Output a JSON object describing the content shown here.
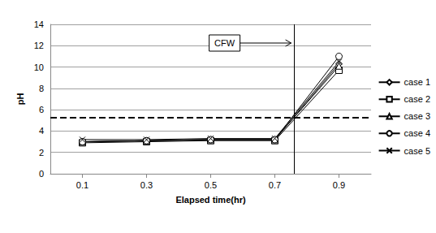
{
  "chart_data": {
    "type": "line",
    "x_label": "Elapsed time(hr)",
    "y_label": "pH",
    "x": [
      0.1,
      0.3,
      0.5,
      0.7,
      0.9
    ],
    "xlim": [
      0,
      1
    ],
    "xticks": [
      0.1,
      0.3,
      0.5,
      0.7,
      0.9
    ],
    "ylim": [
      0,
      14
    ],
    "yticks": [
      0,
      2,
      4,
      6,
      8,
      10,
      12,
      14
    ],
    "grid": true,
    "legend": "right",
    "threshold": 5.3,
    "event_x": 0.756,
    "annotations": [
      {
        "text": "CFW"
      }
    ],
    "series": [
      {
        "name": "case 1",
        "color": "#000000",
        "marker": "diamond",
        "values": [
          3.0,
          3.1,
          3.2,
          3.2,
          10.3
        ]
      },
      {
        "name": "case 2",
        "color": "#000000",
        "marker": "square",
        "values": [
          2.9,
          3.0,
          3.1,
          3.1,
          9.7
        ]
      },
      {
        "name": "case 3",
        "color": "#000000",
        "marker": "triangle",
        "values": [
          3.0,
          3.1,
          3.2,
          3.2,
          10.1
        ]
      },
      {
        "name": "case 4",
        "color": "#000000",
        "marker": "circle",
        "values": [
          3.0,
          3.1,
          3.2,
          3.2,
          11.0
        ]
      },
      {
        "name": "case 5",
        "color": "#000000",
        "marker": "x",
        "values": [
          3.2,
          3.2,
          3.3,
          3.3,
          10.5
        ]
      }
    ]
  }
}
